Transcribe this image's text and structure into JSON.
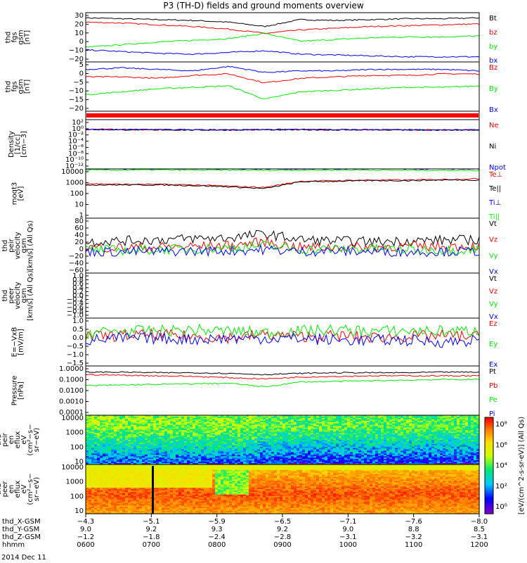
{
  "title": "P3 (TH-D) fields and ground moments overview",
  "date_label": "2014 Dec 11",
  "colors": {
    "black": "#000000",
    "red": "#ff0000",
    "green": "#00ee00",
    "blue": "#0000ff"
  },
  "chart_data": [
    {
      "type": "line",
      "ylabel": [
        "thd",
        "fgs",
        "gsm",
        "[nT]"
      ],
      "ylim": [
        -25,
        32
      ],
      "yticks": [
        "30",
        "20",
        "10",
        "0",
        "−10",
        "−20"
      ],
      "series": [
        {
          "name": "Bt",
          "color": "black",
          "values": [
            26,
            25,
            24,
            23,
            21,
            16,
            24,
            23,
            24,
            25,
            25,
            26
          ]
        },
        {
          "name": "bz",
          "color": "red",
          "values": [
            21,
            20,
            18,
            16,
            13,
            8,
            12,
            14,
            16,
            17,
            18,
            19
          ]
        },
        {
          "name": "by",
          "color": "green",
          "values": [
            -8,
            -5,
            -2,
            0,
            2,
            8,
            -1,
            1,
            3,
            4,
            4,
            5
          ]
        },
        {
          "name": "bx",
          "color": "blue",
          "values": [
            -11,
            -13,
            -15,
            -16,
            -14,
            -12,
            -16,
            -17,
            -18,
            -19,
            -19,
            -19
          ]
        }
      ]
    },
    {
      "type": "line",
      "ylabel": [
        "thd",
        "fgs",
        "gsm",
        "[nT]"
      ],
      "ylim": [
        -23,
        10
      ],
      "yticks": [
        "5",
        "0",
        "−5",
        "−10",
        "−15",
        "−20"
      ],
      "series": [
        {
          "name": "Bz",
          "color": "red",
          "values": [
            0,
            0,
            -1,
            1,
            2,
            -4,
            -1,
            0,
            1,
            1,
            2,
            2
          ]
        },
        {
          "name": "By",
          "color": "green",
          "values": [
            -12,
            -10,
            -8,
            -7,
            -6,
            -15,
            -10,
            -9,
            -8,
            -7,
            -7,
            -6
          ]
        },
        {
          "name": "Bx",
          "color": "blue",
          "values": [
            5,
            6,
            5,
            4,
            7,
            3,
            4,
            4,
            5,
            5,
            5,
            4
          ]
        }
      ]
    },
    {
      "type": "line",
      "ylabel": [
        "Density",
        "[1/cc]",
        "[cm−3]"
      ],
      "ylim": [
        -14,
        4
      ],
      "log": true,
      "yticks": [
        "10²",
        "10⁰",
        "10⁻²",
        "10⁻⁴",
        "10⁻⁶",
        "10⁻⁸",
        "10⁻¹⁰",
        "10⁻¹²"
      ],
      "series": [
        {
          "name": "Ne",
          "color": "red",
          "values": [
            0.5,
            0.4,
            0.3,
            0.3,
            0.3,
            0.4,
            0.4,
            0.3,
            0.3,
            0.3,
            0.3,
            0.3
          ]
        },
        {
          "name": "Ni",
          "color": "black",
          "values": [
            0.4,
            0.3,
            0.3,
            0.2,
            0.3,
            0.3,
            0.3,
            0.3,
            0.3,
            0.2,
            0.2,
            0.2
          ]
        },
        {
          "name": "Npot",
          "color": "blue",
          "values": [
            0.3,
            0.4,
            0.3,
            0.3,
            0.2,
            0.3,
            0.3,
            0.3,
            0.3,
            0.3,
            0.2,
            0.3
          ]
        }
      ]
    },
    {
      "type": "line",
      "ylabel": [
        "moqt3",
        "[eV]"
      ],
      "ylim": [
        0,
        4
      ],
      "log": true,
      "yticks": [
        "10000",
        "1000",
        "100",
        "10",
        "1"
      ],
      "series": [
        {
          "name": "Te⊥",
          "color": "red",
          "values": [
            2.8,
            2.75,
            2.75,
            2.7,
            2.6,
            2.5,
            3,
            3.05,
            3.1,
            3.1,
            3.15,
            3.2
          ]
        },
        {
          "name": "Te||",
          "color": "black",
          "values": [
            2.7,
            2.7,
            2.7,
            2.65,
            2.55,
            2.4,
            2.95,
            3,
            3.05,
            3.05,
            3.1,
            3.1
          ]
        },
        {
          "name": "Ti⊥",
          "color": "blue",
          "values": [
            4,
            4,
            4.01,
            4,
            4.02,
            4,
            4,
            4,
            4.01,
            4,
            4,
            4
          ]
        },
        {
          "name": "Ti||",
          "color": "green",
          "values": [
            3.9,
            3.9,
            3.92,
            3.9,
            3.9,
            3.88,
            3.9,
            3.9,
            3.9,
            3.88,
            3.88,
            3.87
          ]
        }
      ]
    },
    {
      "type": "line",
      "ylabel": [
        "thd",
        "peir",
        "velocity",
        "gsm",
        "[km/s] (All Qs)"
      ],
      "ylim": [
        -60,
        80
      ],
      "yticks": [
        "80",
        "60",
        "40",
        "20",
        "0",
        "−20",
        "−40",
        "−60"
      ],
      "series": [
        {
          "name": "Vt",
          "color": "black",
          "values": [
            20,
            22,
            25,
            28,
            30,
            40,
            25,
            22,
            20,
            22,
            24,
            25
          ]
        },
        {
          "name": "Vz",
          "color": "red",
          "values": [
            5,
            5,
            6,
            8,
            10,
            20,
            5,
            6,
            7,
            8,
            8,
            9
          ]
        },
        {
          "name": "Vy",
          "color": "green",
          "values": [
            0,
            -2,
            0,
            2,
            4,
            10,
            0,
            1,
            2,
            0,
            -1,
            0
          ]
        },
        {
          "name": "Vx",
          "color": "blue",
          "values": [
            -5,
            -6,
            -5,
            -4,
            -3,
            0,
            -5,
            -4,
            -5,
            -6,
            -5,
            -5
          ]
        }
      ]
    },
    {
      "type": "line",
      "ylabel": [
        "thd",
        "peer",
        "velocity",
        "gsm",
        "[km/s] (All Qs)"
      ],
      "ylim": [
        -1,
        1
      ],
      "yticks": [
        "1.0",
        "0.8",
        "0.6",
        "0.4",
        "0.2",
        "0.0",
        "−0.2",
        "−0.4",
        "−0.6",
        "−0.8",
        "−1.0"
      ],
      "series": [
        {
          "name": "Vt",
          "color": "black",
          "values": []
        },
        {
          "name": "Vz",
          "color": "red",
          "values": []
        },
        {
          "name": "Vy",
          "color": "green",
          "values": []
        },
        {
          "name": "Vx",
          "color": "blue",
          "values": []
        }
      ]
    },
    {
      "type": "line",
      "ylabel": [
        "E=−VxB",
        "[mV/m]"
      ],
      "ylim": [
        -1.6,
        1.0
      ],
      "yticks": [
        "1.0",
        "0.5",
        "0.0",
        "−0.5",
        "−1.0",
        "−1.5"
      ],
      "series": [
        {
          "name": "Ez",
          "color": "red",
          "values": [
            0,
            0.05,
            0.1,
            0,
            -0.05,
            0.1,
            0,
            0.05,
            -0.05,
            0,
            0.05,
            0
          ]
        },
        {
          "name": "Ey",
          "color": "green",
          "values": [
            0.2,
            0.3,
            0.3,
            0.35,
            0.3,
            0.2,
            0.3,
            0.35,
            0.3,
            0.3,
            0.3,
            0.3
          ]
        },
        {
          "name": "Ex",
          "color": "blue",
          "values": [
            -0.2,
            -0.1,
            -0.1,
            -0.15,
            -0.1,
            -0.1,
            -0.1,
            -0.2,
            -0.2,
            -0.2,
            -0.3,
            -0.2
          ]
        }
      ]
    },
    {
      "type": "line",
      "ylabel": [
        "Pressure",
        "[nPa]"
      ],
      "ylim": [
        -4,
        0
      ],
      "log": true,
      "yticks": [
        "1.0000",
        "0.1000",
        "0.0100",
        "0.0010",
        "0.0001"
      ],
      "series": [
        {
          "name": "Pt",
          "color": "black",
          "values": [
            -0.5,
            -0.5,
            -0.55,
            -0.55,
            -0.6,
            -0.7,
            -0.6,
            -0.55,
            -0.55,
            -0.55,
            -0.5,
            -0.5
          ]
        },
        {
          "name": "Pb",
          "color": "red",
          "values": [
            -0.7,
            -0.75,
            -0.8,
            -0.85,
            -0.95,
            -1.05,
            -0.9,
            -0.85,
            -0.8,
            -0.8,
            -0.8,
            -0.8
          ]
        },
        {
          "name": "Pe",
          "color": "green",
          "values": [
            -1.6,
            -1.55,
            -1.5,
            -1.45,
            -1.4,
            -1.7,
            -1.3,
            -1.25,
            -1.2,
            -1.15,
            -1.1,
            -1.1
          ]
        },
        {
          "name": "Pi",
          "color": "blue",
          "values": []
        }
      ]
    },
    {
      "type": "heatmap",
      "ylabel": [
        "thd",
        "peir",
        "en",
        "eflux",
        "eV",
        "(cm²−s−",
        "sr−eV)"
      ],
      "ylim": [
        5,
        20000
      ],
      "log": true,
      "yticks": [
        "10000",
        "1000",
        "100",
        "10"
      ]
    },
    {
      "type": "heatmap",
      "ylabel": [
        "thd",
        "peer",
        "en",
        "eflux",
        "eV",
        "(cm²−s−",
        "sr−eV)"
      ],
      "ylim": [
        5,
        20000
      ],
      "log": true,
      "yticks": [
        "10000",
        "1000",
        "100",
        "10"
      ]
    }
  ],
  "colorbar": {
    "label": "[eV/(cm^2-s-sr-eV)] (All Qs)",
    "ticks": [
      "10⁸",
      "10⁶",
      "10⁴",
      "10²",
      "10⁰"
    ]
  },
  "xaxis": {
    "row_labels": [
      "thd_X-GSM",
      "thd_Y-GSM",
      "thd_Z-GSM",
      "hhmm"
    ],
    "columns": [
      [
        "−4.3",
        "9.0",
        "−1.2",
        "0600"
      ],
      [
        "−5.1",
        "9.2",
        "−1.8",
        "0700"
      ],
      [
        "−5.9",
        "9.3",
        "−2.4",
        "0800"
      ],
      [
        "−6.5",
        "9.2",
        "−2.8",
        "0900"
      ],
      [
        "−7.1",
        "9.0",
        "−3.1",
        "1000"
      ],
      [
        "−7.6",
        "8.8",
        "−3.2",
        "1100"
      ],
      [
        "−8.0",
        "8.5",
        "−3.1",
        "1200"
      ]
    ]
  }
}
